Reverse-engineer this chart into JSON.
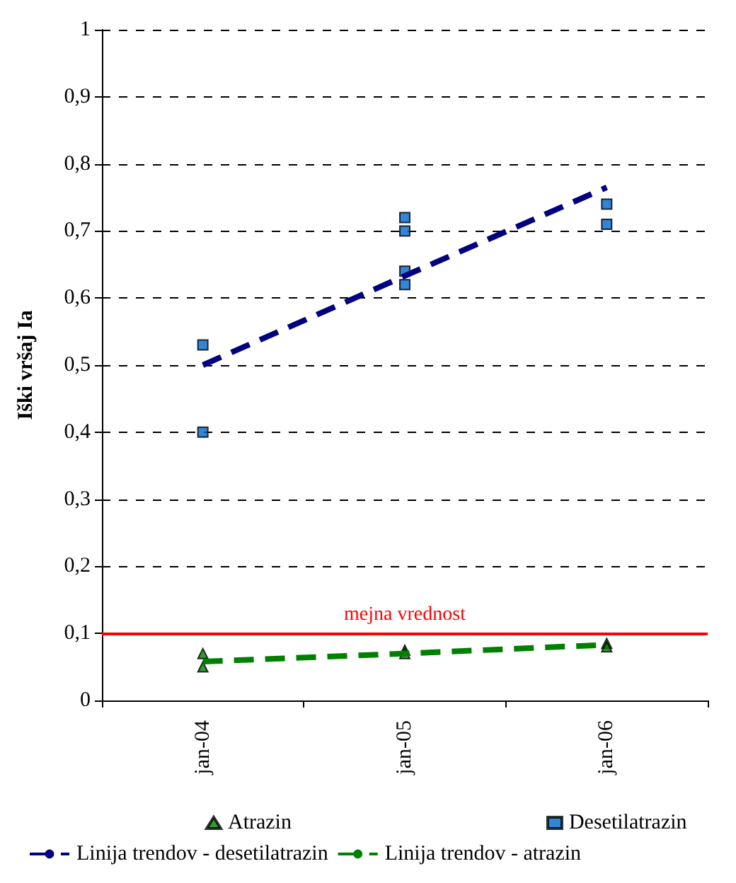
{
  "chart_data": {
    "type": "scatter",
    "ylabel": "Iški vršaj Ia",
    "categories": [
      "jan-04",
      "jan-05",
      "jan-06"
    ],
    "series": [
      {
        "name": "Atrazin",
        "marker": "triangle",
        "color": "#008000",
        "x": [
          "jan-04",
          "jan-04",
          "jan-05",
          "jan-05",
          "jan-06",
          "jan-06"
        ],
        "values": [
          0.07,
          0.05,
          0.075,
          0.07,
          0.085,
          0.08
        ]
      },
      {
        "name": "Desetilatrazin",
        "marker": "square",
        "color": "#0066cc",
        "x": [
          "jan-04",
          "jan-04",
          "jan-05",
          "jan-05",
          "jan-05",
          "jan-05",
          "jan-06",
          "jan-06"
        ],
        "values": [
          0.53,
          0.4,
          0.72,
          0.7,
          0.64,
          0.62,
          0.74,
          0.71
        ]
      },
      {
        "name": "Linija trendov - desetilatrazin",
        "type": "line",
        "marker": "none",
        "line_style": "dashed",
        "color": "#000080",
        "x": [
          "jan-04",
          "jan-05",
          "jan-06"
        ],
        "values": [
          0.5,
          0.633,
          0.765
        ]
      },
      {
        "name": "Linija trendov - atrazin",
        "type": "line",
        "marker": "none",
        "line_style": "dashed",
        "color": "#008000",
        "x": [
          "jan-04",
          "jan-05",
          "jan-06"
        ],
        "values": [
          0.058,
          0.07,
          0.083
        ]
      }
    ],
    "ylim": [
      0,
      1
    ],
    "yticks": [
      0,
      {
        "value": 0.1,
        "label": "0,1"
      },
      {
        "value": 0.2,
        "label": "0,2"
      },
      {
        "value": 0.3,
        "label": "0,3"
      },
      {
        "value": 0.4,
        "label": "0,4"
      },
      {
        "value": 0.5,
        "label": "0,5"
      },
      {
        "value": 0.6,
        "label": "0,6"
      },
      {
        "value": 0.7,
        "label": "0,7"
      },
      {
        "value": 0.8,
        "label": "0,8"
      },
      {
        "value": 0.9,
        "label": "0,9"
      },
      1
    ],
    "ref_lines": [
      {
        "axis": "y",
        "value": 0.1,
        "label": "mejna vrednost",
        "color": "#ff0000",
        "line_style": "solid"
      }
    ],
    "grid": "y",
    "legend": "bottom"
  }
}
